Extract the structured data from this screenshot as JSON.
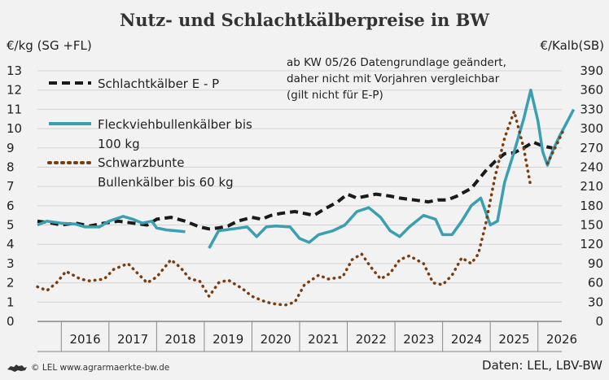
{
  "chart_data": {
    "type": "line",
    "title": "Nutz- und Schlachtkälberpreise in BW",
    "ylabel_left": "€/kg (SG +FL)",
    "ylabel_right": "€/Kalb(SB)",
    "ylim_left": [
      0,
      13
    ],
    "ylim_right": [
      0,
      390
    ],
    "yticks_left": [
      "0",
      "1",
      "2",
      "3",
      "4",
      "5",
      "6",
      "7",
      "8",
      "9",
      "10",
      "11",
      "12",
      "13"
    ],
    "yticks_right": [
      "0",
      "30",
      "60",
      "90",
      "120",
      "150",
      "180",
      "210",
      "240",
      "270",
      "300",
      "330",
      "360",
      "390"
    ],
    "xlim": [
      2015.5,
      2026.5
    ],
    "xticks": [
      "2016",
      "2017",
      "2018",
      "2019",
      "2020",
      "2021",
      "2022",
      "2023",
      "2024",
      "2025",
      "2026"
    ],
    "annotation": [
      "ab KW 05/26 Datengrundlage geändert,",
      "daher nicht mit Vorjahren vergleichbar",
      "(gilt nicht für E-P)"
    ],
    "grid": "horizontal",
    "series": [
      {
        "name": "Schlachtkälber E - P",
        "axis": "left",
        "style": "dashed",
        "color": "#1a1a1a",
        "points": [
          [
            2015.5,
            5.2
          ],
          [
            2015.8,
            5.1
          ],
          [
            2016.0,
            5.0
          ],
          [
            2016.3,
            5.1
          ],
          [
            2016.6,
            4.95
          ],
          [
            2016.9,
            5.1
          ],
          [
            2017.2,
            5.2
          ],
          [
            2017.5,
            5.1
          ],
          [
            2017.8,
            5.0
          ],
          [
            2018.0,
            5.3
          ],
          [
            2018.3,
            5.4
          ],
          [
            2018.6,
            5.2
          ],
          [
            2018.9,
            4.9
          ],
          [
            2019.1,
            4.8
          ],
          [
            2019.3,
            4.85
          ],
          [
            2019.5,
            4.95
          ],
          [
            2019.7,
            5.2
          ],
          [
            2020.0,
            5.4
          ],
          [
            2020.2,
            5.3
          ],
          [
            2020.4,
            5.5
          ],
          [
            2020.6,
            5.6
          ],
          [
            2020.9,
            5.7
          ],
          [
            2021.1,
            5.6
          ],
          [
            2021.3,
            5.5
          ],
          [
            2021.5,
            5.8
          ],
          [
            2021.8,
            6.2
          ],
          [
            2022.0,
            6.6
          ],
          [
            2022.2,
            6.4
          ],
          [
            2022.4,
            6.5
          ],
          [
            2022.6,
            6.6
          ],
          [
            2022.9,
            6.5
          ],
          [
            2023.1,
            6.4
          ],
          [
            2023.4,
            6.3
          ],
          [
            2023.7,
            6.2
          ],
          [
            2023.9,
            6.3
          ],
          [
            2024.1,
            6.3
          ],
          [
            2024.3,
            6.5
          ],
          [
            2024.6,
            6.9
          ],
          [
            2024.9,
            7.8
          ],
          [
            2025.1,
            8.3
          ],
          [
            2025.3,
            8.7
          ],
          [
            2025.5,
            8.75
          ],
          [
            2025.7,
            9.0
          ],
          [
            2025.9,
            9.3
          ],
          [
            2026.1,
            9.1
          ],
          [
            2026.3,
            9.0
          ]
        ]
      },
      {
        "name": "Fleckviehbullenkälber bis 100 kg",
        "axis": "right",
        "style": "solid",
        "color": "#3a9fb0",
        "points": [
          [
            2015.5,
            5.0
          ],
          [
            2015.7,
            5.2
          ],
          [
            2016.0,
            5.1
          ],
          [
            2016.3,
            5.05
          ],
          [
            2016.5,
            4.9
          ],
          [
            2016.8,
            4.9
          ],
          [
            2017.0,
            5.2
          ],
          [
            2017.3,
            5.45
          ],
          [
            2017.5,
            5.3
          ],
          [
            2017.7,
            5.1
          ],
          [
            2017.9,
            5.2
          ],
          [
            2018.0,
            4.85
          ],
          [
            2018.2,
            4.75
          ],
          [
            2018.4,
            4.7
          ],
          [
            2018.6,
            4.65
          ],
          [
            2018.9,
            null
          ],
          [
            2019.1,
            3.8
          ],
          [
            2019.3,
            4.7
          ],
          [
            2019.6,
            4.8
          ],
          [
            2019.9,
            4.9
          ],
          [
            2020.1,
            4.4
          ],
          [
            2020.3,
            4.9
          ],
          [
            2020.5,
            4.95
          ],
          [
            2020.8,
            4.9
          ],
          [
            2021.0,
            4.3
          ],
          [
            2021.2,
            4.1
          ],
          [
            2021.4,
            4.5
          ],
          [
            2021.7,
            4.7
          ],
          [
            2021.95,
            5.0
          ],
          [
            2022.2,
            5.7
          ],
          [
            2022.45,
            5.9
          ],
          [
            2022.7,
            5.4
          ],
          [
            2022.9,
            4.7
          ],
          [
            2023.1,
            4.4
          ],
          [
            2023.3,
            4.9
          ],
          [
            2023.6,
            5.5
          ],
          [
            2023.85,
            5.3
          ],
          [
            2024.0,
            4.5
          ],
          [
            2024.2,
            4.5
          ],
          [
            2024.4,
            5.2
          ],
          [
            2024.6,
            6.0
          ],
          [
            2024.8,
            6.4
          ],
          [
            2025.0,
            5.0
          ],
          [
            2025.15,
            5.2
          ],
          [
            2025.3,
            7.2
          ],
          [
            2025.5,
            8.8
          ],
          [
            2025.7,
            10.5
          ],
          [
            2025.85,
            12.0
          ],
          [
            2026.0,
            10.4
          ],
          [
            2026.1,
            8.8
          ],
          [
            2026.2,
            8.1
          ],
          [
            2026.3,
            8.8
          ],
          [
            2026.45,
            9.6
          ],
          [
            2026.6,
            10.3
          ],
          [
            2026.75,
            11.0
          ]
        ]
      },
      {
        "name": "Schwarzbunte Bullenkälber bis 60 kg",
        "axis": "right",
        "style": "dotted",
        "color": "#7a3d10",
        "points": [
          [
            2015.5,
            1.8
          ],
          [
            2015.7,
            1.6
          ],
          [
            2015.9,
            2.0
          ],
          [
            2016.1,
            2.6
          ],
          [
            2016.4,
            2.2
          ],
          [
            2016.6,
            2.1
          ],
          [
            2016.9,
            2.2
          ],
          [
            2017.1,
            2.7
          ],
          [
            2017.4,
            3.0
          ],
          [
            2017.6,
            2.5
          ],
          [
            2017.8,
            2.0
          ],
          [
            2018.0,
            2.3
          ],
          [
            2018.3,
            3.2
          ],
          [
            2018.5,
            2.8
          ],
          [
            2018.7,
            2.2
          ],
          [
            2018.9,
            2.1
          ],
          [
            2019.1,
            1.3
          ],
          [
            2019.3,
            2.0
          ],
          [
            2019.5,
            2.15
          ],
          [
            2019.8,
            1.7
          ],
          [
            2020.0,
            1.3
          ],
          [
            2020.3,
            1.0
          ],
          [
            2020.5,
            0.9
          ],
          [
            2020.7,
            0.85
          ],
          [
            2020.9,
            1.0
          ],
          [
            2021.1,
            1.9
          ],
          [
            2021.4,
            2.4
          ],
          [
            2021.6,
            2.2
          ],
          [
            2021.9,
            2.3
          ],
          [
            2022.1,
            3.2
          ],
          [
            2022.3,
            3.5
          ],
          [
            2022.5,
            2.8
          ],
          [
            2022.7,
            2.2
          ],
          [
            2022.9,
            2.5
          ],
          [
            2023.1,
            3.2
          ],
          [
            2023.3,
            3.4
          ],
          [
            2023.6,
            3.0
          ],
          [
            2023.8,
            2.0
          ],
          [
            2024.0,
            1.9
          ],
          [
            2024.2,
            2.4
          ],
          [
            2024.4,
            3.3
          ],
          [
            2024.6,
            3.0
          ],
          [
            2024.75,
            3.5
          ],
          [
            2024.9,
            5.0
          ],
          [
            2025.1,
            7.5
          ],
          [
            2025.3,
            9.5
          ],
          [
            2025.5,
            10.9
          ],
          [
            2025.7,
            9.0
          ],
          [
            2025.85,
            7.0
          ],
          [
            2026.0,
            null
          ],
          [
            2026.2,
            8.2
          ],
          [
            2026.4,
            9.2
          ],
          [
            2026.55,
            10.0
          ]
        ]
      }
    ]
  },
  "legend": {
    "e_p": "Schlachtkälber E - P",
    "fv_line1": "Fleckviehbullenkälber bis",
    "fv_line2": "100 kg",
    "sb_line1": "Schwarzbunte",
    "sb_line2": "Bullenkälber bis 60 kg"
  },
  "footer": {
    "left": "© LEL www.agrarmaerkte-bw.de",
    "right": "Daten: LEL, LBV-BW"
  }
}
